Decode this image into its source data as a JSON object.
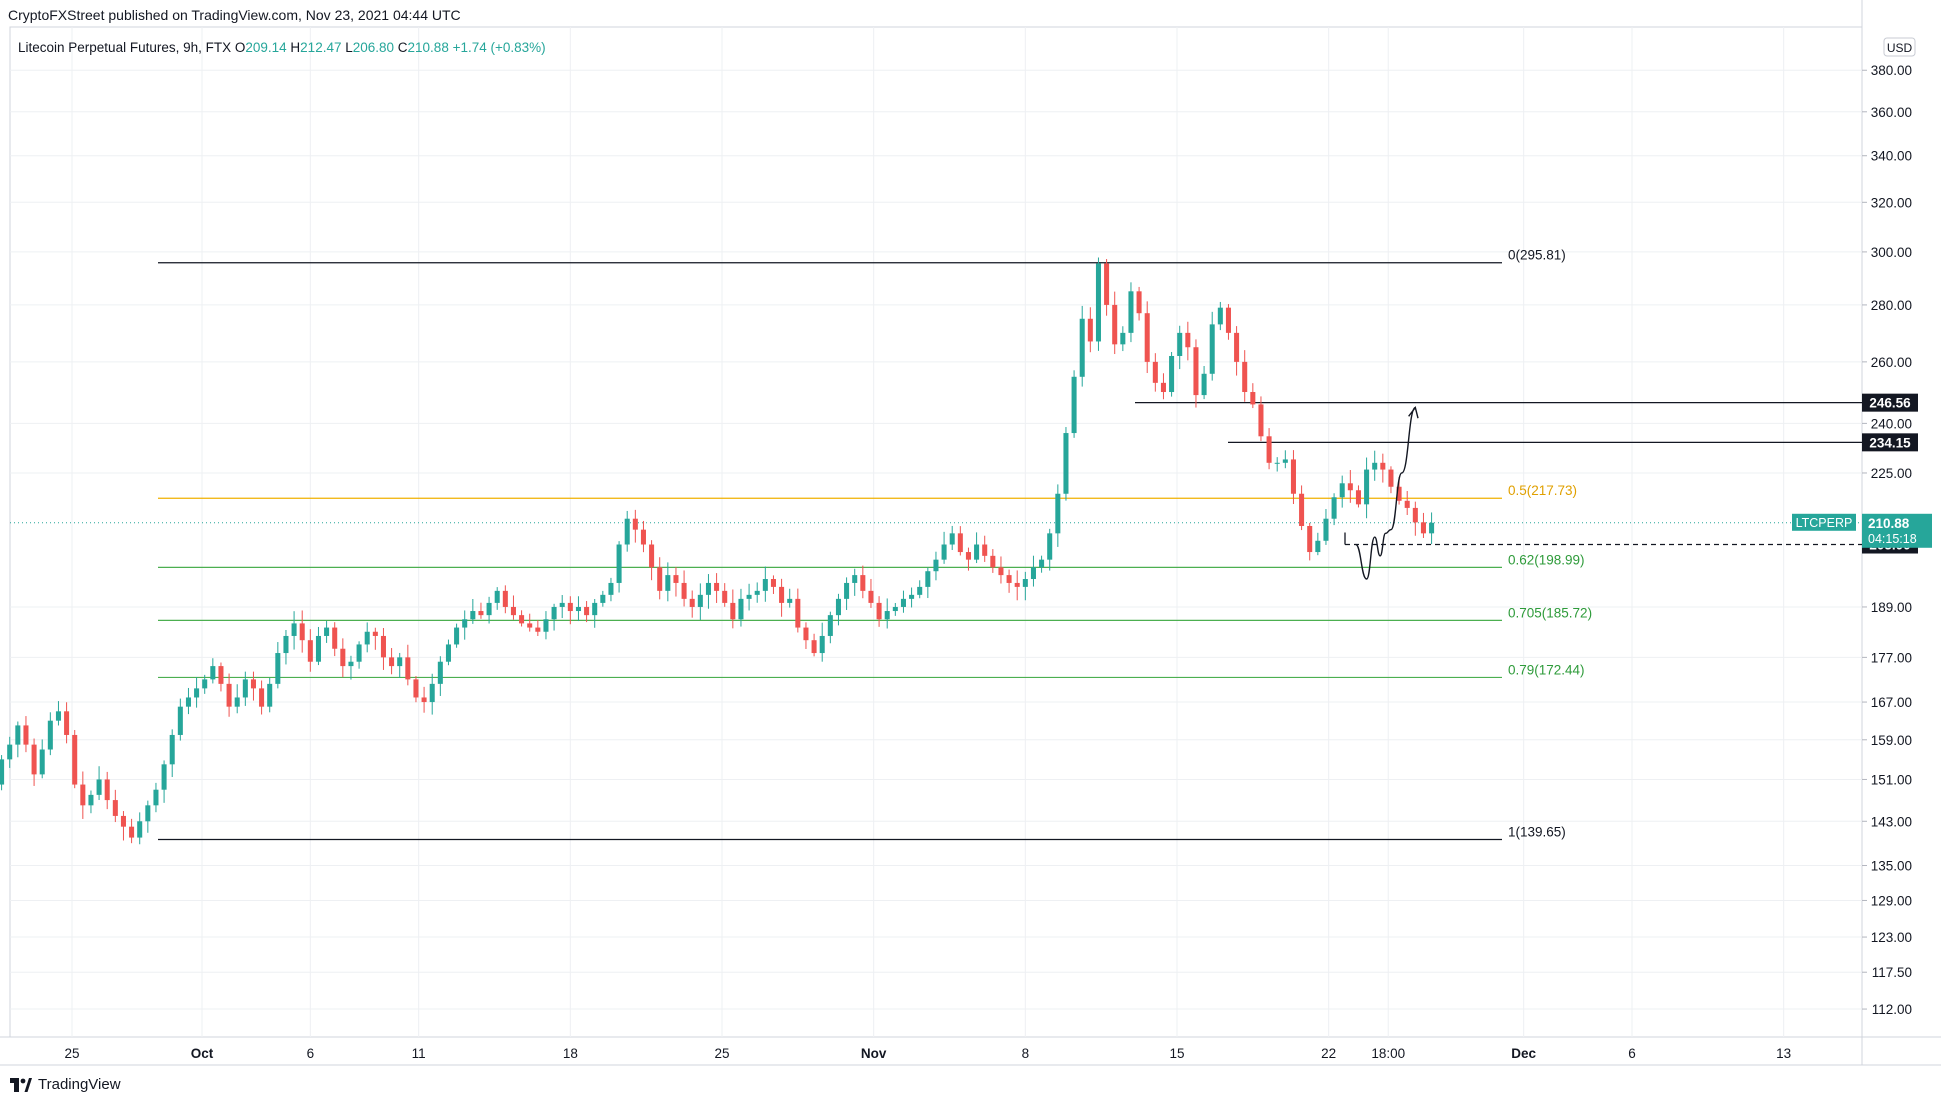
{
  "header": {
    "credit": "CryptoFXStreet published on TradingView.com, Nov 23, 2021 04:44 UTC",
    "symbol_line": "Litecoin Perpetual Futures, 9h, FTX",
    "ohlc": [
      {
        "label": "O",
        "value": "209.14"
      },
      {
        "label": "H",
        "value": "212.47"
      },
      {
        "label": "L",
        "value": "206.80"
      },
      {
        "label": "C",
        "value": "210.88"
      }
    ],
    "change": "+1.74 (+0.83%)",
    "currency": "USD"
  },
  "footer": {
    "brand": "TradingView"
  },
  "colors": {
    "up": "#26a69a",
    "down": "#ef5350",
    "fib_half": "#f0b000",
    "fib_green": "#4caf50",
    "level": "#131722",
    "current": "#26a69a"
  },
  "chart_data": {
    "type": "candlestick",
    "y_scale": "log",
    "ylim": [
      108,
      402
    ],
    "y_ticks": [
      {
        "value": 380,
        "label": "380.00"
      },
      {
        "value": 360,
        "label": "360.00"
      },
      {
        "value": 340,
        "label": "340.00"
      },
      {
        "value": 320,
        "label": "320.00"
      },
      {
        "value": 300,
        "label": "300.00"
      },
      {
        "value": 280,
        "label": "280.00"
      },
      {
        "value": 260,
        "label": "260.00"
      },
      {
        "value": 240,
        "label": "240.00"
      },
      {
        "value": 225,
        "label": "225.00"
      },
      {
        "value": 189,
        "label": "189.00"
      },
      {
        "value": 177,
        "label": "177.00"
      },
      {
        "value": 167,
        "label": "167.00"
      },
      {
        "value": 159,
        "label": "159.00"
      },
      {
        "value": 151,
        "label": "151.00"
      },
      {
        "value": 143,
        "label": "143.00"
      },
      {
        "value": 135,
        "label": "135.00"
      },
      {
        "value": 129,
        "label": "129.00"
      },
      {
        "value": 123,
        "label": "123.00"
      },
      {
        "value": 117.5,
        "label": "117.50"
      },
      {
        "value": 112,
        "label": "112.00"
      }
    ],
    "x_ticks": [
      {
        "date": "2021-09-25",
        "label": "25",
        "bold": false
      },
      {
        "date": "2021-10-01",
        "label": "Oct",
        "bold": true
      },
      {
        "date": "2021-10-06",
        "label": "6",
        "bold": false
      },
      {
        "date": "2021-10-11",
        "label": "11",
        "bold": false
      },
      {
        "date": "2021-10-18",
        "label": "18",
        "bold": false
      },
      {
        "date": "2021-10-25",
        "label": "25",
        "bold": false
      },
      {
        "date": "2021-11-01",
        "label": "Nov",
        "bold": true
      },
      {
        "date": "2021-11-08",
        "label": "8",
        "bold": false
      },
      {
        "date": "2021-11-15",
        "label": "15",
        "bold": false
      },
      {
        "date": "2021-11-22",
        "label": "22",
        "bold": false
      },
      {
        "date": "2021-11-24T18:00",
        "label": "18:00",
        "bold": false
      },
      {
        "date": "2021-12-01",
        "label": "Dec",
        "bold": true
      },
      {
        "date": "2021-12-06",
        "label": "6",
        "bold": false
      },
      {
        "date": "2021-12-13",
        "label": "13",
        "bold": false
      }
    ],
    "ohlc_close_path": [
      150,
      155,
      158,
      162,
      158,
      152,
      157,
      163,
      165,
      160,
      150,
      146,
      148,
      151,
      147,
      144,
      142,
      140,
      143,
      146,
      149,
      154,
      160,
      166,
      168,
      170,
      172,
      175,
      171,
      166,
      168,
      172,
      170,
      166,
      171,
      178,
      182,
      185,
      181,
      176,
      182,
      184,
      179,
      175,
      176,
      180,
      183,
      182,
      177,
      175,
      177,
      172,
      168,
      167,
      171,
      176,
      180,
      184,
      186,
      188,
      187,
      190,
      193,
      189,
      187,
      185,
      184,
      183,
      186,
      189,
      190,
      188,
      189,
      187,
      190,
      192,
      195,
      205,
      212,
      209,
      205,
      199,
      193,
      197,
      195,
      191,
      189,
      192,
      195,
      193,
      190,
      186,
      191,
      192,
      193,
      196,
      194,
      190,
      191,
      184,
      181,
      178,
      182,
      187,
      191,
      195,
      197,
      193,
      190,
      186,
      188,
      189,
      191,
      192,
      194,
      198,
      201,
      205,
      208,
      203,
      201,
      205,
      202,
      199,
      197,
      195,
      194,
      196,
      199,
      201,
      208,
      219,
      237,
      255,
      275,
      267,
      295.5,
      280,
      266,
      270,
      285,
      277,
      260,
      253,
      250,
      262,
      270,
      265,
      249,
      256,
      273,
      279,
      270,
      260,
      250,
      246,
      236,
      228,
      228,
      229,
      219,
      210,
      203,
      206,
      212,
      218,
      222,
      220,
      216,
      226,
      228,
      226,
      221,
      217,
      215,
      211,
      208,
      210.88
    ],
    "candle_start": "2021-09-21T09:00",
    "candle_interval_hours": 9,
    "fib_levels": [
      {
        "ratio": "0",
        "value": 295.81,
        "label": "0(295.81)",
        "color": "#131722"
      },
      {
        "ratio": "0.5",
        "value": 217.73,
        "label": "0.5(217.73)",
        "color": "#f0b000"
      },
      {
        "ratio": "0.62",
        "value": 198.99,
        "label": "0.62(198.99)",
        "color": "#4caf50"
      },
      {
        "ratio": "0.705",
        "value": 185.72,
        "label": "0.705(185.72)",
        "color": "#4caf50"
      },
      {
        "ratio": "0.79",
        "value": 172.44,
        "label": "0.79(172.44)",
        "color": "#4caf50"
      },
      {
        "ratio": "1",
        "value": 139.65,
        "label": "1(139.65)",
        "color": "#131722"
      }
    ],
    "horizontal_levels": [
      {
        "value": 246.56,
        "label": "246.56"
      },
      {
        "value": 234.15,
        "label": "234.15"
      },
      {
        "value": 205.0,
        "label": "205.00",
        "dashed": true
      }
    ],
    "current_price": {
      "value": 210.88,
      "symbol": "LTCPERP",
      "price": "210.88",
      "countdown": "04:15:18"
    },
    "projection_path": [
      {
        "date": "2021-11-23T06:00",
        "value": 205
      },
      {
        "date": "2021-11-23T18:00",
        "value": 196
      },
      {
        "date": "2021-11-24T03:00",
        "value": 207
      },
      {
        "date": "2021-11-24T09:00",
        "value": 202
      },
      {
        "date": "2021-11-24T15:00",
        "value": 208
      },
      {
        "date": "2021-11-24T21:00",
        "value": 209
      },
      {
        "date": "2021-11-25T09:00",
        "value": 225
      },
      {
        "date": "2021-11-26T00:00",
        "value": 245
      }
    ]
  }
}
